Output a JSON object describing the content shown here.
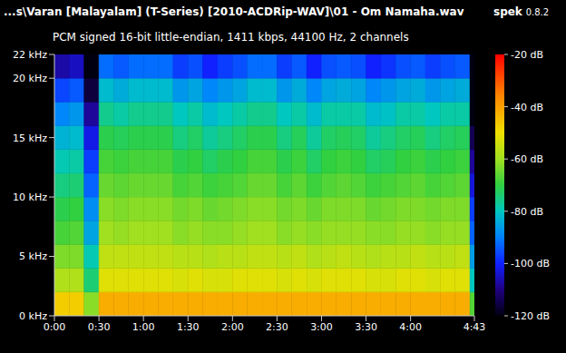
{
  "chart_data": {
    "type": "heatmap",
    "title": "...s\\Varan [Malayalam] (T-Series) [2010-ACDRip-WAV]\\01 - Om Namaha.wav",
    "subtitle": "PCM signed 16-bit little-endian, 1411 kbps, 44100 Hz, 2 channels",
    "app_name": "spek",
    "app_version": "0.8.2",
    "xlim": [
      0,
      283
    ],
    "xticks": [
      {
        "value": 0,
        "label": "0:00"
      },
      {
        "value": 30,
        "label": "0:30"
      },
      {
        "value": 60,
        "label": "1:00"
      },
      {
        "value": 90,
        "label": "1:30"
      },
      {
        "value": 120,
        "label": "2:00"
      },
      {
        "value": 150,
        "label": "2:30"
      },
      {
        "value": 180,
        "label": "3:00"
      },
      {
        "value": 210,
        "label": "3:30"
      },
      {
        "value": 240,
        "label": "4:00"
      },
      {
        "value": 283,
        "label": "4:43"
      }
    ],
    "ylim": [
      0,
      22
    ],
    "yticks": [
      {
        "value": 0,
        "label": "0 kHz"
      },
      {
        "value": 5,
        "label": "5 kHz"
      },
      {
        "value": 10,
        "label": "10 kHz"
      },
      {
        "value": 15,
        "label": "15 kHz"
      },
      {
        "value": 20,
        "label": "20 kHz"
      },
      {
        "value": 22,
        "label": "22 kHz"
      }
    ],
    "grid": false,
    "x_bins": [
      0,
      10,
      20,
      30,
      40,
      50,
      60,
      70,
      80,
      90,
      100,
      110,
      120,
      130,
      140,
      150,
      160,
      170,
      180,
      190,
      200,
      210,
      220,
      230,
      240,
      250,
      260,
      270,
      280,
      283
    ],
    "y_bins": [
      0,
      2,
      4,
      6,
      8,
      10,
      12,
      14,
      16,
      18,
      20,
      22
    ],
    "cells": [
      [
        -47,
        -47,
        -62,
        -42,
        -42,
        -42,
        -42,
        -42,
        -42,
        -42,
        -42,
        -42,
        -42,
        -42,
        -42,
        -42,
        -42,
        -42,
        -42,
        -42,
        -42,
        -42,
        -42,
        -42,
        -42,
        -42,
        -42,
        -42,
        -67
      ],
      [
        -58,
        -58,
        -74,
        -52,
        -52,
        -52,
        -52,
        -52,
        -53,
        -52,
        -53,
        -53,
        -52,
        -52,
        -52,
        -53,
        -52,
        -53,
        -52,
        -52,
        -52,
        -53,
        -53,
        -52,
        -52,
        -53,
        -52,
        -52,
        -80
      ],
      [
        -63,
        -63,
        -79,
        -56,
        -56,
        -56,
        -56,
        -56,
        -57,
        -57,
        -58,
        -57,
        -57,
        -56,
        -56,
        -57,
        -56,
        -58,
        -57,
        -56,
        -57,
        -58,
        -57,
        -57,
        -56,
        -57,
        -57,
        -56,
        -86
      ],
      [
        -68,
        -67,
        -85,
        -60,
        -61,
        -60,
        -60,
        -60,
        -62,
        -61,
        -62,
        -62,
        -61,
        -60,
        -60,
        -62,
        -61,
        -62,
        -61,
        -61,
        -61,
        -62,
        -62,
        -61,
        -61,
        -62,
        -61,
        -61,
        -93
      ],
      [
        -71,
        -70,
        -88,
        -62,
        -63,
        -62,
        -62,
        -62,
        -64,
        -63,
        -65,
        -64,
        -63,
        -62,
        -62,
        -64,
        -63,
        -65,
        -63,
        -63,
        -63,
        -65,
        -64,
        -63,
        -63,
        -64,
        -63,
        -63,
        -97
      ],
      [
        -75,
        -74,
        -93,
        -65,
        -66,
        -65,
        -65,
        -65,
        -68,
        -67,
        -69,
        -68,
        -67,
        -65,
        -65,
        -68,
        -66,
        -69,
        -67,
        -66,
        -67,
        -69,
        -68,
        -67,
        -66,
        -68,
        -67,
        -66,
        -103
      ],
      [
        -79,
        -78,
        -97,
        -68,
        -69,
        -68,
        -68,
        -68,
        -71,
        -70,
        -73,
        -71,
        -70,
        -68,
        -68,
        -71,
        -69,
        -73,
        -70,
        -69,
        -70,
        -73,
        -72,
        -70,
        -69,
        -71,
        -70,
        -69,
        -108
      ],
      [
        -83,
        -82,
        -102,
        -71,
        -72,
        -71,
        -71,
        -71,
        -75,
        -73,
        -77,
        -75,
        -73,
        -71,
        -71,
        -75,
        -72,
        -77,
        -73,
        -72,
        -73,
        -77,
        -75,
        -73,
        -72,
        -75,
        -73,
        -72,
        -114
      ],
      [
        -89,
        -87,
        -108,
        -76,
        -78,
        -76,
        -76,
        -76,
        -80,
        -78,
        -82,
        -80,
        -78,
        -76,
        -76,
        -80,
        -78,
        -82,
        -78,
        -78,
        -78,
        -82,
        -81,
        -78,
        -78,
        -80,
        -78,
        -78,
        -120
      ],
      [
        -96,
        -94,
        -116,
        -82,
        -84,
        -82,
        -82,
        -82,
        -87,
        -85,
        -89,
        -87,
        -85,
        -82,
        -82,
        -87,
        -84,
        -89,
        -85,
        -84,
        -85,
        -89,
        -87,
        -85,
        -84,
        -87,
        -85,
        -84,
        -120
      ],
      [
        -107,
        -105,
        -120,
        -92,
        -94,
        -92,
        -92,
        -92,
        -97,
        -95,
        -100,
        -97,
        -95,
        -92,
        -92,
        -97,
        -94,
        -100,
        -95,
        -94,
        -95,
        -100,
        -98,
        -95,
        -94,
        -97,
        -95,
        -94,
        -120
      ]
    ],
    "colorbar": {
      "range": [
        -120,
        -20
      ],
      "ticks": [
        {
          "value": -20,
          "label": "-20 dB"
        },
        {
          "value": -40,
          "label": "-40 dB"
        },
        {
          "value": -60,
          "label": "-60 dB"
        },
        {
          "value": -80,
          "label": "-80 dB"
        },
        {
          "value": -100,
          "label": "-100 dB"
        },
        {
          "value": -120,
          "label": "-120 dB"
        }
      ]
    }
  }
}
